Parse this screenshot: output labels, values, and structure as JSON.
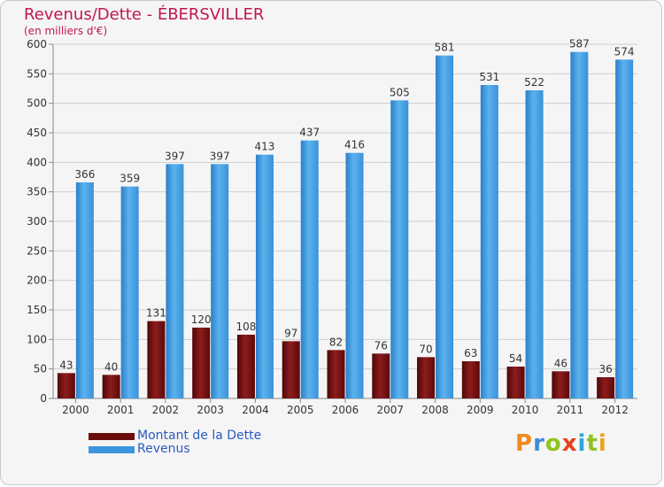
{
  "header": {
    "title": "Revenus/Dette - ÉBERSVILLER",
    "subtitle": "(en milliers d'€)"
  },
  "legend": {
    "items": [
      {
        "label": "Montant de la Dette",
        "color": "#6b0d0d"
      },
      {
        "label": "Revenus",
        "color": "#3d95dd"
      }
    ]
  },
  "logo": {
    "letters": [
      "P",
      "r",
      "o",
      "x",
      "i",
      "t",
      "i"
    ],
    "colors": [
      "#f08a1c",
      "#3c8dd6",
      "#8fc31f",
      "#e8401e",
      "#2fa4dc",
      "#8fc31f",
      "#f0a11c"
    ]
  },
  "chart_data": {
    "type": "bar",
    "title": "Revenus/Dette - ÉBERSVILLER",
    "subtitle": "(en milliers d'€)",
    "categories": [
      "2000",
      "2001",
      "2002",
      "2003",
      "2004",
      "2005",
      "2006",
      "2007",
      "2008",
      "2009",
      "2010",
      "2011",
      "2012"
    ],
    "series": [
      {
        "name": "Montant de la Dette",
        "color": "#6b0d0d",
        "values": [
          43,
          40,
          131,
          120,
          108,
          97,
          82,
          76,
          70,
          63,
          54,
          46,
          36
        ]
      },
      {
        "name": "Revenus",
        "color": "#3d95dd",
        "values": [
          366,
          359,
          397,
          397,
          413,
          437,
          416,
          505,
          581,
          531,
          522,
          587,
          574
        ]
      }
    ],
    "ylim": [
      0,
      600
    ],
    "yticks": [
      0,
      50,
      100,
      150,
      200,
      250,
      300,
      350,
      400,
      450,
      500,
      550,
      600
    ],
    "grid": true,
    "legend_position": "bottom-left"
  }
}
